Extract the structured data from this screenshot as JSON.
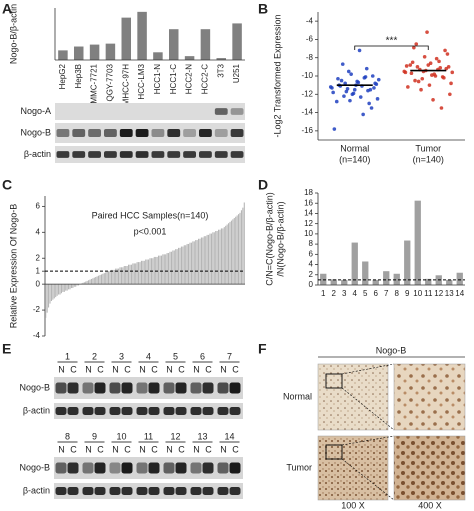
{
  "chart_data": [
    {
      "label": "A",
      "type": "bar",
      "ylabel": "Nogo-B/β-actin",
      "categories": [
        "HepG2",
        "Hep3B",
        "SMMC-7721",
        "QGY-7703",
        "MHCC-97H",
        "HCC-LM3",
        "HCC1-N",
        "HCC1-C",
        "HCC2-N",
        "HCC2-C",
        "3T3",
        "U251"
      ],
      "values": [
        5,
        7,
        8,
        8.5,
        22,
        25,
        4,
        16,
        2,
        16,
        1,
        19
      ],
      "color": "#808080",
      "ylim": [
        0,
        27
      ],
      "blot_labels": [
        "Nogo-A",
        "Nogo-B",
        "β-actin"
      ]
    },
    {
      "label": "B",
      "type": "strip",
      "ylabel": "-Log2 Transformed Expression",
      "categories": [
        "Normal",
        "Tumor"
      ],
      "category_notes": [
        "(n=140)",
        "(n=140)"
      ],
      "series": [
        {
          "color": "#1f3fbf",
          "values": [
            -11.2,
            -10.8,
            -11.5,
            -10.1,
            -12.3,
            -11.0,
            -9.8,
            -11.7,
            -10.5,
            -12.8,
            -11.3,
            -10.9,
            -13.5,
            -9.2,
            -11.1,
            -10.6,
            -12.0,
            -11.4,
            -8.7,
            -10.3,
            -11.8,
            -12.5,
            -10.0,
            -11.6,
            -14.2,
            -10.7,
            -11.9,
            -9.5,
            -12.2,
            -11.0,
            -15.8,
            -10.4,
            -11.3,
            -13.0,
            -10.2,
            -7.2,
            -11.5,
            -12.7,
            -10.8,
            -11.1
          ]
        },
        {
          "color": "#d03020",
          "values": [
            -9.5,
            -9.0,
            -10.2,
            -8.4,
            -9.8,
            -11.0,
            -7.9,
            -9.3,
            -10.5,
            -8.8,
            -9.6,
            -12.0,
            -7.2,
            -9.1,
            -10.0,
            -8.6,
            -9.4,
            -11.5,
            -6.5,
            -9.7,
            -8.9,
            -10.8,
            -9.2,
            -13.5,
            -8.1,
            -9.9,
            -5.2,
            -10.3,
            -9.0,
            -8.5,
            -11.2,
            -9.6,
            -7.6,
            -10.1,
            -9.3,
            -12.6,
            -8.8,
            -9.5,
            -10.6,
            -6.9
          ]
        }
      ],
      "means": [
        -11,
        -9.4
      ],
      "ylim": [
        -17,
        -3
      ],
      "yticks": [
        -16,
        -14,
        -12,
        -10,
        -8,
        -6,
        -4
      ],
      "annotation": "***"
    },
    {
      "label": "C",
      "type": "bar",
      "ylabel": "Relative Expression Of Nogo-B",
      "values": [
        -2.6,
        -2.2,
        -1.8,
        -1.5,
        -1.3,
        -1.2,
        -1.1,
        -1.0,
        -0.9,
        -0.8,
        -0.8,
        -0.7,
        -0.6,
        -0.6,
        -0.5,
        -0.5,
        -0.4,
        -0.4,
        -0.3,
        -0.3,
        -0.2,
        -0.2,
        -0.1,
        -0.1,
        0.0,
        0.05,
        0.1,
        0.15,
        0.2,
        0.25,
        0.3,
        0.35,
        0.4,
        0.45,
        0.5,
        0.55,
        0.6,
        0.65,
        0.7,
        0.75,
        0.8,
        0.85,
        0.9,
        0.95,
        1.0,
        1.0,
        1.1,
        1.1,
        1.1,
        1.2,
        1.2,
        1.2,
        1.3,
        1.3,
        1.3,
        1.4,
        1.4,
        1.4,
        1.5,
        1.5,
        1.5,
        1.6,
        1.6,
        1.6,
        1.7,
        1.7,
        1.7,
        1.8,
        1.8,
        1.8,
        1.9,
        1.9,
        1.9,
        2.0,
        2.0,
        2.0,
        2.1,
        2.1,
        2.1,
        2.2,
        2.2,
        2.2,
        2.3,
        2.3,
        2.3,
        2.4,
        2.4,
        2.5,
        2.5,
        2.6,
        2.6,
        2.7,
        2.7,
        2.8,
        2.8,
        2.9,
        2.9,
        3.0,
        3.0,
        3.1,
        3.1,
        3.2,
        3.2,
        3.3,
        3.3,
        3.4,
        3.4,
        3.5,
        3.5,
        3.6,
        3.6,
        3.7,
        3.7,
        3.8,
        3.8,
        3.9,
        3.9,
        4.0,
        4.0,
        4.1,
        4.1,
        4.2,
        4.2,
        4.3,
        4.3,
        4.4,
        4.5,
        4.6,
        4.7,
        4.8,
        4.9,
        5.0,
        5.1,
        5.2,
        5.3,
        5.4,
        5.5,
        5.7,
        5.9,
        6.3
      ],
      "color": "#b4b4b4",
      "ylim": [
        -4,
        6.8
      ],
      "yticks": [
        -4,
        -2,
        0,
        1,
        2,
        4,
        6
      ],
      "reference_line": 1,
      "annotations": [
        "Paired HCC Samples(n=140)",
        "p<0.001"
      ]
    },
    {
      "label": "D",
      "type": "bar",
      "ylabel": [
        "C/N=C(Nogo-B/β-actin)",
        "/N(Nogo-B/β-actin)"
      ],
      "categories": [
        "1",
        "2",
        "3",
        "4",
        "5",
        "6",
        "7",
        "8",
        "9",
        "10",
        "11",
        "12",
        "13",
        "14"
      ],
      "values": [
        2.2,
        1.1,
        1.0,
        8.3,
        4.6,
        1.0,
        2.7,
        2.2,
        8.7,
        16.5,
        1.2,
        1.9,
        1.0,
        2.4
      ],
      "color": "#a0a0a0",
      "ylim": [
        0,
        18
      ],
      "yticks": [
        0,
        2,
        4,
        6,
        8,
        10,
        12,
        14,
        16,
        18
      ],
      "reference_line": 1
    }
  ],
  "panel_e": {
    "label": "E",
    "samples": [
      "1",
      "2",
      "3",
      "4",
      "5",
      "6",
      "7",
      "8",
      "9",
      "10",
      "11",
      "12",
      "13",
      "14"
    ],
    "lanes": [
      "N",
      "C"
    ],
    "rows": [
      "Nogo-B",
      "β-actin"
    ]
  },
  "panel_f": {
    "label": "F",
    "title": "Nogo-B",
    "rows": [
      "Normal",
      "Tumor"
    ],
    "columns": [
      "100 X",
      "400 X"
    ]
  }
}
